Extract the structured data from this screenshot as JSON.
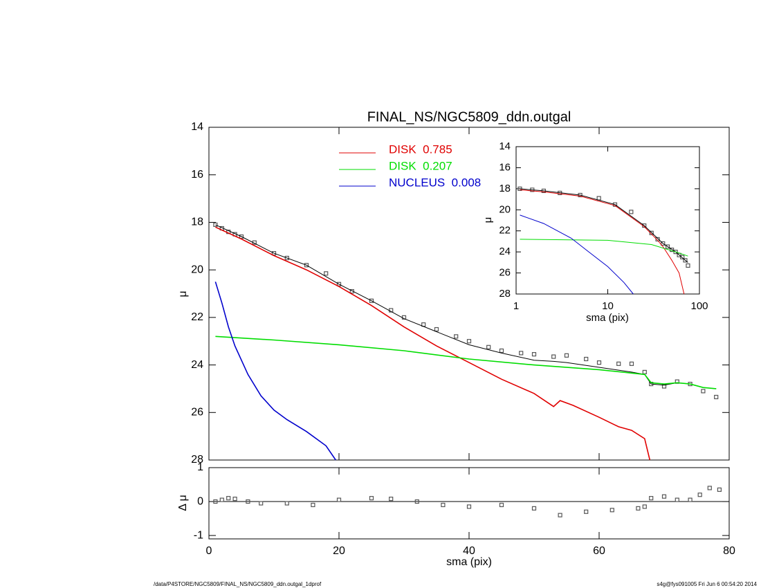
{
  "chart_data": [
    {
      "type": "line",
      "title": "FINAL_NS/NGC5809_ddn.outgal",
      "y_label": "μ",
      "xlim": [
        0,
        80
      ],
      "ylim": [
        14,
        28
      ],
      "y_inverted": true,
      "yticks": [
        14,
        16,
        18,
        20,
        22,
        24,
        26,
        28
      ],
      "series": [
        {
          "color": "#555555",
          "marker": "square",
          "x": [
            1,
            2,
            3,
            4,
            5,
            7,
            10,
            12,
            15,
            18,
            20,
            22,
            25,
            28,
            30,
            33,
            35,
            38,
            40,
            43,
            45,
            48,
            50,
            53,
            55,
            58,
            60,
            63,
            65,
            67,
            68,
            70,
            72,
            74,
            76,
            78
          ],
          "values": [
            18.1,
            18.25,
            18.4,
            18.5,
            18.6,
            18.85,
            19.3,
            19.5,
            19.8,
            20.15,
            20.6,
            20.9,
            21.3,
            21.7,
            22.0,
            22.3,
            22.5,
            22.8,
            23.0,
            23.25,
            23.4,
            23.5,
            23.55,
            23.65,
            23.6,
            23.75,
            23.9,
            23.95,
            23.95,
            24.3,
            24.8,
            24.9,
            24.7,
            24.8,
            25.1,
            25.35
          ]
        },
        {
          "color": "#000000",
          "marker": "line",
          "x": [
            1,
            5,
            10,
            15,
            20,
            25,
            30,
            35,
            40,
            45,
            50,
            53,
            55,
            60,
            65,
            67,
            68,
            70,
            72,
            74,
            76,
            78
          ],
          "values": [
            18.1,
            18.6,
            19.3,
            19.8,
            20.6,
            21.3,
            22.05,
            22.6,
            23.15,
            23.5,
            23.8,
            23.85,
            23.9,
            24.1,
            24.3,
            24.4,
            24.8,
            24.85,
            24.75,
            24.8,
            24.95,
            25.0
          ]
        },
        {
          "name": "DISK  0.785",
          "color": "#e00000",
          "marker": "line",
          "x": [
            1,
            5,
            10,
            15,
            20,
            25,
            30,
            35,
            40,
            45,
            50,
            53,
            54,
            56,
            60,
            63,
            65,
            67,
            67.8
          ],
          "values": [
            18.2,
            18.7,
            19.4,
            20.0,
            20.7,
            21.5,
            22.4,
            23.2,
            23.9,
            24.6,
            25.2,
            25.75,
            25.5,
            25.7,
            26.2,
            26.6,
            26.75,
            27.1,
            28.0
          ]
        },
        {
          "name": "DISK  0.207",
          "color": "#00dd00",
          "marker": "line",
          "x": [
            1,
            10,
            20,
            30,
            40,
            50,
            60,
            67,
            68,
            70,
            72,
            74,
            76,
            78
          ],
          "values": [
            22.8,
            22.95,
            23.15,
            23.4,
            23.75,
            24.0,
            24.2,
            24.4,
            24.75,
            24.8,
            24.75,
            24.8,
            24.95,
            25.0
          ]
        },
        {
          "name": "NUCLEUS  0.008",
          "color": "#0000cc",
          "marker": "line",
          "x": [
            1,
            2,
            3,
            4,
            5,
            6,
            8,
            10,
            12,
            15,
            18,
            19.5
          ],
          "values": [
            20.5,
            21.4,
            22.4,
            23.2,
            23.8,
            24.4,
            25.3,
            25.9,
            26.3,
            26.8,
            27.4,
            28.0
          ]
        }
      ]
    },
    {
      "type": "scatter",
      "x_label": "sma (pix)",
      "y_label": "Δ μ",
      "xlim": [
        0,
        80
      ],
      "xticks": [
        0,
        20,
        40,
        60,
        80
      ],
      "ylim": [
        -1.1,
        1
      ],
      "yticks": [
        -1,
        0,
        1
      ],
      "series": [
        {
          "color": "#555555",
          "marker": "square",
          "x": [
            1,
            2,
            3,
            4,
            6,
            8,
            12,
            16,
            20,
            25,
            28,
            32,
            36,
            40,
            45,
            50,
            54,
            58,
            62,
            66,
            67,
            68,
            70,
            72,
            74,
            75.5,
            77,
            78.5
          ],
          "values": [
            0,
            0.05,
            0.1,
            0.08,
            0,
            -0.05,
            -0.05,
            -0.1,
            0.05,
            0.1,
            0.08,
            0,
            -0.1,
            -0.15,
            -0.1,
            -0.2,
            -0.4,
            -0.3,
            -0.25,
            -0.2,
            -0.15,
            0.1,
            0.15,
            0.05,
            0.05,
            0.2,
            0.4,
            0.35
          ]
        }
      ]
    },
    {
      "type": "line",
      "x_label": "sma (pix)",
      "y_label": "μ",
      "xscale": "log",
      "xlim": [
        1,
        100
      ],
      "xticks": [
        1,
        10,
        100
      ],
      "ylim": [
        14,
        28
      ],
      "y_inverted": true,
      "yticks": [
        14,
        16,
        18,
        20,
        22,
        24,
        26,
        28
      ],
      "series": [
        {
          "color": "#555555",
          "marker": "square",
          "x": [
            1.1,
            1.5,
            2,
            3,
            5,
            8,
            12,
            18,
            25,
            30,
            35,
            40,
            45,
            50,
            55,
            60,
            65,
            70,
            75
          ],
          "values": [
            18.0,
            18.1,
            18.2,
            18.4,
            18.6,
            18.9,
            19.5,
            20.2,
            21.5,
            22.2,
            22.8,
            23.2,
            23.5,
            23.8,
            24.0,
            24.3,
            24.5,
            24.8,
            25.3
          ]
        },
        {
          "color": "#000000",
          "marker": "line",
          "x": [
            1.1,
            2,
            5,
            12,
            25,
            40,
            55,
            70,
            75
          ],
          "values": [
            18.0,
            18.2,
            18.6,
            19.5,
            21.5,
            23.2,
            24.0,
            24.8,
            25.0
          ]
        },
        {
          "color": "#e00000",
          "marker": "line",
          "x": [
            1.1,
            2,
            5,
            12,
            25,
            35,
            40,
            50,
            60,
            68
          ],
          "values": [
            18.1,
            18.3,
            18.7,
            19.6,
            21.6,
            22.9,
            23.5,
            24.8,
            26.0,
            28.0
          ]
        },
        {
          "color": "#00dd00",
          "marker": "line",
          "x": [
            1.1,
            10,
            30,
            60,
            75
          ],
          "values": [
            22.8,
            22.9,
            23.3,
            24.1,
            24.4
          ]
        },
        {
          "color": "#0000cc",
          "marker": "line",
          "x": [
            1.1,
            2,
            4,
            6,
            10,
            15,
            19
          ],
          "values": [
            20.5,
            21.3,
            22.7,
            23.9,
            25.4,
            26.9,
            28.0
          ]
        }
      ]
    }
  ],
  "footer": {
    "path": "/data/P4STORE/NGC5809/FINAL_NS/NGC5809_ddn.outgal_1dprof",
    "stamp": "s4g@fys091005  Fri Jun  6 00:54:20 2014"
  }
}
